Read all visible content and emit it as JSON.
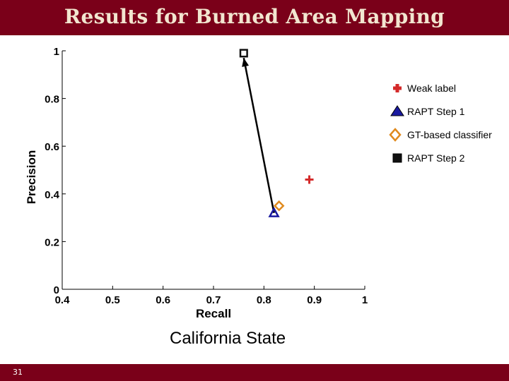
{
  "slide": {
    "title": "Results for Burned Area Mapping",
    "caption": "California State",
    "slide_number": "31",
    "theme_color": "#7a0019",
    "title_color": "#f2e6d0"
  },
  "chart_data": {
    "type": "scatter",
    "title": "",
    "xlabel": "Recall",
    "ylabel": "Precision",
    "xlim": [
      0.4,
      1.0
    ],
    "ylim": [
      0,
      1.0
    ],
    "xticks": [
      "0.4",
      "0.5",
      "0.6",
      "0.7",
      "0.8",
      "0.9",
      "1"
    ],
    "yticks": [
      "0",
      "0.2",
      "0.4",
      "0.6",
      "0.8",
      "1"
    ],
    "grid": false,
    "legend_position": "right",
    "series": [
      {
        "name": "Weak label",
        "marker": "plus",
        "color": "#d42a2a",
        "points": [
          [
            0.89,
            0.46
          ]
        ]
      },
      {
        "name": "RAPT Step 1",
        "marker": "triangle",
        "color": "#1a1aa0",
        "points": [
          [
            0.82,
            0.32
          ]
        ]
      },
      {
        "name": "GT-based classifier",
        "marker": "diamond",
        "color": "#e08a1e",
        "points": [
          [
            0.83,
            0.35
          ]
        ]
      },
      {
        "name": "RAPT Step 2",
        "marker": "square",
        "color": "#111111",
        "points": [
          [
            0.76,
            0.99
          ]
        ]
      }
    ],
    "annotations": [
      {
        "type": "arrow",
        "from": [
          0.82,
          0.32
        ],
        "to": [
          0.76,
          0.97
        ]
      }
    ]
  }
}
